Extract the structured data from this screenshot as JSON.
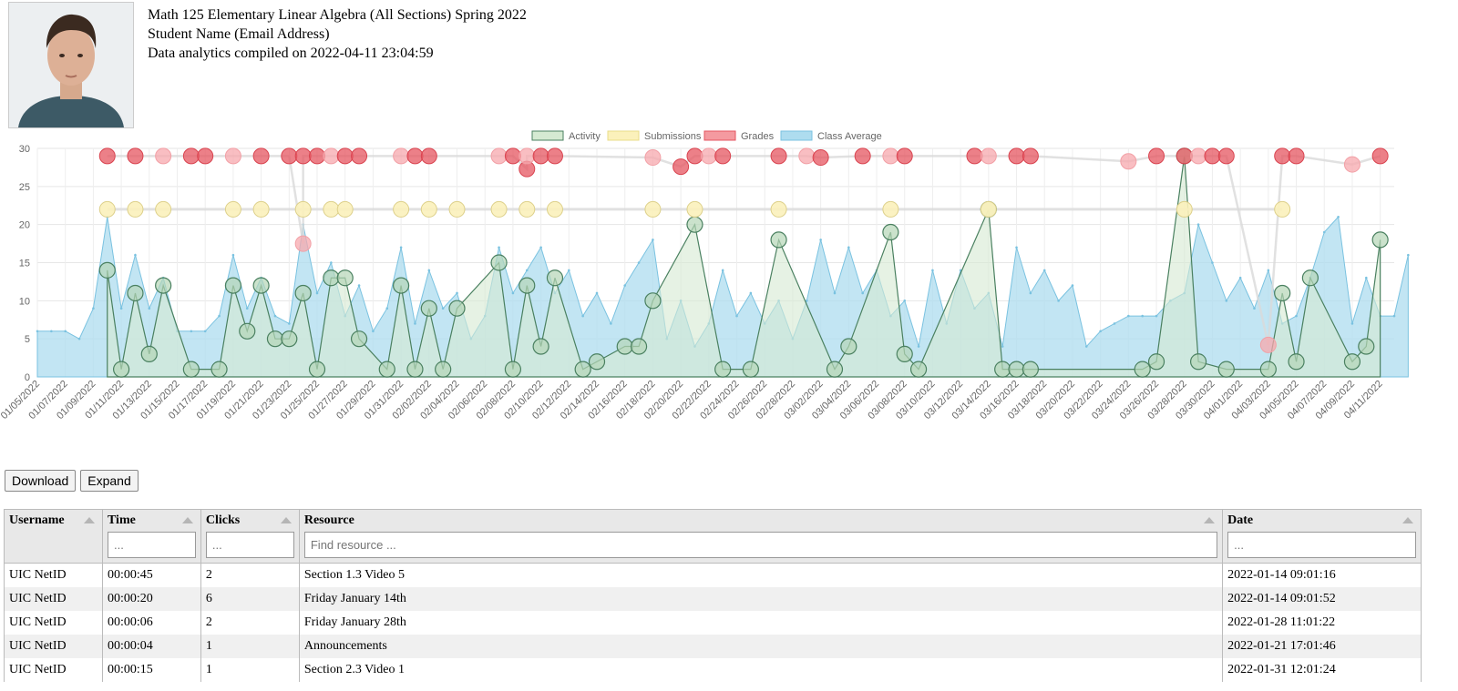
{
  "header": {
    "course_title": "Math 125 Elementary Linear Algebra (All Sections) Spring 2022",
    "student_name": "Student Name (Email Address)",
    "compiled": "Data analytics compiled on 2022-04-11 23:04:59"
  },
  "chart_data": {
    "type": "area",
    "legend": [
      "Activity",
      "Submissions",
      "Grades",
      "Class Average"
    ],
    "legend_position": "top-center",
    "ylim": [
      0,
      30
    ],
    "yticks": [
      0,
      5,
      10,
      15,
      20,
      25,
      30
    ],
    "grid": true,
    "colors": {
      "activity_fill": "#d5ead2",
      "activity_line": "#4a8060",
      "submissions_fill": "#fbf1bb",
      "submissions_line": "#e9dd8a",
      "grades_fill": "#f49aa0",
      "grades_line": "#e55560",
      "class_fill": "#aedcef",
      "class_line": "#7ac2e0"
    },
    "x_tick_labels": [
      "01/05/2022",
      "01/07/2022",
      "01/09/2022",
      "01/11/2022",
      "01/13/2022",
      "01/15/2022",
      "01/17/2022",
      "01/19/2022",
      "01/21/2022",
      "01/23/2022",
      "01/25/2022",
      "01/27/2022",
      "01/29/2022",
      "01/31/2022",
      "02/02/2022",
      "02/04/2022",
      "02/06/2022",
      "02/08/2022",
      "02/10/2022",
      "02/12/2022",
      "02/14/2022",
      "02/16/2022",
      "02/18/2022",
      "02/20/2022",
      "02/22/2022",
      "02/24/2022",
      "02/26/2022",
      "02/28/2022",
      "03/02/2022",
      "03/04/2022",
      "03/06/2022",
      "03/08/2022",
      "03/10/2022",
      "03/12/2022",
      "03/14/2022",
      "03/16/2022",
      "03/18/2022",
      "03/20/2022",
      "03/22/2022",
      "03/24/2022",
      "03/26/2022",
      "03/28/2022",
      "03/30/2022",
      "04/01/2022",
      "04/03/2022",
      "04/05/2022",
      "04/07/2022",
      "04/09/2022",
      "04/11/2022"
    ],
    "class_average": {
      "day_start": "01/05/2022",
      "values": [
        6,
        6,
        6,
        5,
        9,
        21,
        9,
        16,
        9,
        13,
        6,
        6,
        6,
        8,
        16,
        9,
        13,
        8,
        7,
        20,
        11,
        15,
        8,
        12,
        6,
        9,
        17,
        7,
        14,
        9,
        11,
        5,
        8,
        17,
        11,
        14,
        17,
        11,
        14,
        8,
        11,
        7,
        12,
        15,
        18,
        5,
        10,
        4,
        7,
        14,
        8,
        11,
        7,
        10,
        5,
        10,
        18,
        11,
        17,
        11,
        14,
        8,
        10,
        4,
        14,
        7,
        14,
        9,
        11,
        4,
        17,
        11,
        14,
        10,
        12,
        4,
        6,
        7,
        8,
        8,
        8,
        10,
        11,
        20,
        15,
        10,
        13,
        9,
        14,
        7,
        8,
        13,
        19,
        21,
        7,
        13,
        8,
        8,
        16
      ]
    },
    "activity": {
      "points": [
        [
          "01/10/2022",
          14
        ],
        [
          "01/11/2022",
          1
        ],
        [
          "01/12/2022",
          11
        ],
        [
          "01/13/2022",
          3
        ],
        [
          "01/14/2022",
          12
        ],
        [
          "01/16/2022",
          1
        ],
        [
          "01/18/2022",
          1
        ],
        [
          "01/19/2022",
          12
        ],
        [
          "01/20/2022",
          6
        ],
        [
          "01/21/2022",
          12
        ],
        [
          "01/22/2022",
          5
        ],
        [
          "01/23/2022",
          5
        ],
        [
          "01/24/2022",
          11
        ],
        [
          "01/25/2022",
          1
        ],
        [
          "01/26/2022",
          13
        ],
        [
          "01/27/2022",
          13
        ],
        [
          "01/28/2022",
          5
        ],
        [
          "01/30/2022",
          1
        ],
        [
          "01/31/2022",
          12
        ],
        [
          "02/01/2022",
          1
        ],
        [
          "02/02/2022",
          9
        ],
        [
          "02/03/2022",
          1
        ],
        [
          "02/04/2022",
          9
        ],
        [
          "02/07/2022",
          15
        ],
        [
          "02/08/2022",
          1
        ],
        [
          "02/09/2022",
          12
        ],
        [
          "02/10/2022",
          4
        ],
        [
          "02/11/2022",
          13
        ],
        [
          "02/13/2022",
          1
        ],
        [
          "02/14/2022",
          2
        ],
        [
          "02/16/2022",
          4
        ],
        [
          "02/17/2022",
          4
        ],
        [
          "02/18/2022",
          10
        ],
        [
          "02/21/2022",
          20
        ],
        [
          "02/23/2022",
          1
        ],
        [
          "02/25/2022",
          1
        ],
        [
          "02/27/2022",
          18
        ],
        [
          "03/03/2022",
          1
        ],
        [
          "03/04/2022",
          4
        ],
        [
          "03/07/2022",
          19
        ],
        [
          "03/08/2022",
          3
        ],
        [
          "03/09/2022",
          1
        ],
        [
          "03/14/2022",
          22
        ],
        [
          "03/15/2022",
          1
        ],
        [
          "03/16/2022",
          1
        ],
        [
          "03/17/2022",
          1
        ],
        [
          "03/25/2022",
          1
        ],
        [
          "03/26/2022",
          2
        ],
        [
          "03/28/2022",
          29
        ],
        [
          "03/29/2022",
          2
        ],
        [
          "03/31/2022",
          1
        ],
        [
          "04/03/2022",
          1
        ],
        [
          "04/04/2022",
          11
        ],
        [
          "04/05/2022",
          2
        ],
        [
          "04/06/2022",
          13
        ],
        [
          "04/09/2022",
          2
        ],
        [
          "04/10/2022",
          4
        ],
        [
          "04/11/2022",
          18
        ]
      ]
    },
    "submissions": {
      "points": [
        [
          "01/10/2022",
          22
        ],
        [
          "01/12/2022",
          22
        ],
        [
          "01/14/2022",
          22
        ],
        [
          "01/19/2022",
          22
        ],
        [
          "01/21/2022",
          22
        ],
        [
          "01/24/2022",
          22
        ],
        [
          "01/26/2022",
          22
        ],
        [
          "01/27/2022",
          22
        ],
        [
          "01/31/2022",
          22
        ],
        [
          "02/02/2022",
          22
        ],
        [
          "02/04/2022",
          22
        ],
        [
          "02/07/2022",
          22
        ],
        [
          "02/09/2022",
          22
        ],
        [
          "02/11/2022",
          22
        ],
        [
          "02/18/2022",
          22
        ],
        [
          "02/21/2022",
          22
        ],
        [
          "02/27/2022",
          22
        ],
        [
          "03/07/2022",
          22
        ],
        [
          "03/14/2022",
          22
        ],
        [
          "03/28/2022",
          22
        ],
        [
          "04/04/2022",
          22
        ]
      ]
    },
    "grades": {
      "points": [
        [
          "01/10/2022",
          29
        ],
        [
          "01/12/2022",
          29
        ],
        [
          "01/14/2022",
          29
        ],
        [
          "01/16/2022",
          29
        ],
        [
          "01/17/2022",
          29
        ],
        [
          "01/19/2022",
          29
        ],
        [
          "01/21/2022",
          29
        ],
        [
          "01/23/2022",
          29
        ],
        [
          "01/24/2022",
          17.5
        ],
        [
          "01/24/2022",
          29
        ],
        [
          "01/25/2022",
          29
        ],
        [
          "01/26/2022",
          29
        ],
        [
          "01/27/2022",
          29
        ],
        [
          "01/28/2022",
          29
        ],
        [
          "01/31/2022",
          29
        ],
        [
          "02/01/2022",
          29
        ],
        [
          "02/02/2022",
          29
        ],
        [
          "02/07/2022",
          29
        ],
        [
          "02/08/2022",
          29
        ],
        [
          "02/09/2022",
          27.3
        ],
        [
          "02/09/2022",
          29
        ],
        [
          "02/10/2022",
          29
        ],
        [
          "02/11/2022",
          29
        ],
        [
          "02/18/2022",
          28.8
        ],
        [
          "02/20/2022",
          27.6
        ],
        [
          "02/21/2022",
          29
        ],
        [
          "02/22/2022",
          29
        ],
        [
          "02/23/2022",
          29
        ],
        [
          "02/27/2022",
          29
        ],
        [
          "03/01/2022",
          29
        ],
        [
          "03/02/2022",
          28.8
        ],
        [
          "03/05/2022",
          29
        ],
        [
          "03/07/2022",
          29
        ],
        [
          "03/08/2022",
          29
        ],
        [
          "03/13/2022",
          29
        ],
        [
          "03/14/2022",
          29
        ],
        [
          "03/16/2022",
          29
        ],
        [
          "03/17/2022",
          29
        ],
        [
          "03/24/2022",
          28.3
        ],
        [
          "03/26/2022",
          29
        ],
        [
          "03/28/2022",
          29
        ],
        [
          "03/29/2022",
          29
        ],
        [
          "03/30/2022",
          29
        ],
        [
          "03/31/2022",
          29
        ],
        [
          "04/03/2022",
          4.2
        ],
        [
          "04/04/2022",
          29
        ],
        [
          "04/05/2022",
          29
        ],
        [
          "04/09/2022",
          27.9
        ],
        [
          "04/11/2022",
          29
        ]
      ]
    }
  },
  "buttons": {
    "download": "Download",
    "expand": "Expand"
  },
  "table": {
    "columns": [
      {
        "label": "Username",
        "filter_placeholder": ""
      },
      {
        "label": "Time",
        "filter_placeholder": "..."
      },
      {
        "label": "Clicks",
        "filter_placeholder": "..."
      },
      {
        "label": "Resource",
        "filter_placeholder": "Find resource ..."
      },
      {
        "label": "Date",
        "filter_placeholder": "..."
      }
    ],
    "rows": [
      [
        "UIC NetID",
        "00:00:45",
        "2",
        "Section 1.3 Video 5",
        "2022-01-14 09:01:16"
      ],
      [
        "UIC NetID",
        "00:00:20",
        "6",
        "Friday January 14th",
        "2022-01-14 09:01:52"
      ],
      [
        "UIC NetID",
        "00:00:06",
        "2",
        "Friday January 28th",
        "2022-01-28 11:01:22"
      ],
      [
        "UIC NetID",
        "00:00:04",
        "1",
        "Announcements",
        "2022-01-21 17:01:46"
      ],
      [
        "UIC NetID",
        "00:00:15",
        "1",
        "Section 2.3 Video 1",
        "2022-01-31 12:01:24"
      ]
    ]
  }
}
